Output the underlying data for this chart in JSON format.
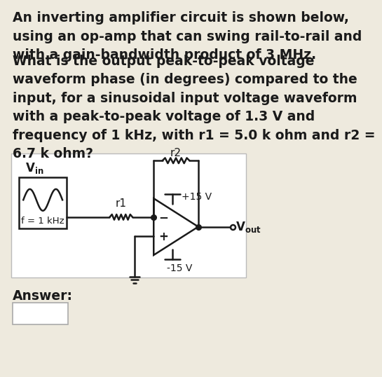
{
  "bg_color": "#eeeade",
  "circuit_bg_color": "#ffffff",
  "title_text": "An inverting amplifier circuit is shown below,\nusing an op-amp that can swing rail-to-rail and\nwith a gain-bandwidth product of 3 MHz.",
  "question_text": "What is the output peak-to-peak voltage\nwaveform phase (in degrees) compared to the\ninput, for a sinusoidal input voltage waveform\nwith a peak-to-peak voltage of 1.3 V and\nfrequency of 1 kHz, with r1 = 5.0 k ohm and r2 =\n6.7 k ohm?",
  "answer_label": "Answer:",
  "font_size_main": 13.5,
  "line_color": "#1a1a1a",
  "circuit_border_color": "#bbbbbb",
  "text_color": "#1a1a1a"
}
